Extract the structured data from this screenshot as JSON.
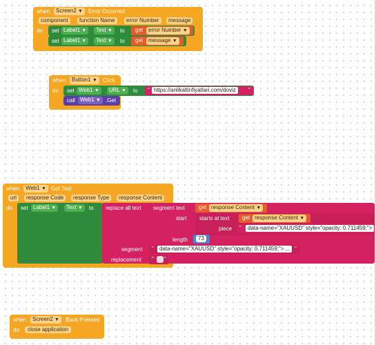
{
  "error_event": {
    "when": "when",
    "component": "Screen2",
    "event": "Error Occurred",
    "params": [
      "component",
      "function Name",
      "error Number",
      "message"
    ],
    "do": "do",
    "set": "set",
    "to": "to",
    "get": "get",
    "rows": [
      {
        "target": "Label1",
        "prop": "Text",
        "value": "error Number"
      },
      {
        "target": "Label1",
        "prop": "Text",
        "value": "message"
      }
    ]
  },
  "click_event": {
    "when": "when",
    "component": "Button1",
    "event": "Click",
    "do": "do",
    "set": "set",
    "target": "Web1",
    "prop": "URL",
    "to": "to",
    "url": "https://anlikaltinfiyatlari.com/doviz",
    "call": "call",
    "call_target": "Web1",
    "call_method": ".Get"
  },
  "gottext_event": {
    "when": "when",
    "component": "Web1",
    "event": "Got Text",
    "params": [
      "url",
      "response Code",
      "response Type",
      "response Content"
    ],
    "do": "do",
    "set": "set",
    "target": "Label1",
    "prop": "Text",
    "to": "to",
    "replace_all": "replace all text",
    "segment_text": "segment  text",
    "get": "get",
    "response_content": "response Content",
    "start": "start",
    "starts_at": "starts at  text",
    "piece": "piece",
    "piece_value": "data-name=\"XAUUSD\" style=\"opacity: 0.711459;\">",
    "length": "length",
    "length_value": "73",
    "segment": "segment",
    "segment_value": "data-name=\"XAUUSD\" style=\"opacity: 0.711459;\"> ...",
    "replacement": "replacement"
  },
  "back_event": {
    "when": "when",
    "component": "Screen2",
    "event": ".Back Pressed",
    "do": "do",
    "action": "close application"
  },
  "dropdown_glyph": "▼",
  "colors": {
    "event": "#f5a623",
    "component": "#2e8b3c",
    "method_call": "#5b3fa6",
    "getter": "#e65a2c",
    "text": "#d4215f",
    "math": "#4b7fd4"
  }
}
